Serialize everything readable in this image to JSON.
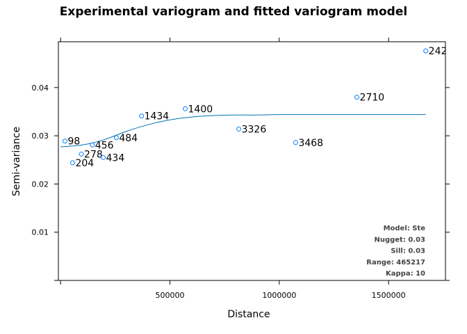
{
  "chart_data": {
    "type": "scatter",
    "title": "Experimental variogram and fitted variogram model",
    "xlabel": "Distance",
    "ylabel": "Semi-variance",
    "xlim": [
      -10000,
      1760000
    ],
    "ylim": [
      0.0,
      0.0495
    ],
    "x_ticks": [
      {
        "value": 500000,
        "label": "500000"
      },
      {
        "value": 1000000,
        "label": "1000000"
      },
      {
        "value": 1500000,
        "label": "1500000"
      }
    ],
    "y_ticks": [
      {
        "value": 0.01,
        "label": "0.01"
      },
      {
        "value": 0.02,
        "label": "0.02"
      },
      {
        "value": 0.03,
        "label": "0.03"
      },
      {
        "value": 0.04,
        "label": "0.04"
      }
    ],
    "grid": false,
    "points_color": "#0080ff",
    "line_color": "#0072b2",
    "points": [
      {
        "x": 20000,
        "y": 0.0289,
        "label": "98"
      },
      {
        "x": 55000,
        "y": 0.0244,
        "label": "204"
      },
      {
        "x": 95000,
        "y": 0.0262,
        "label": "278"
      },
      {
        "x": 145000,
        "y": 0.0281,
        "label": "456"
      },
      {
        "x": 195000,
        "y": 0.0255,
        "label": "434"
      },
      {
        "x": 255000,
        "y": 0.0296,
        "label": "484"
      },
      {
        "x": 370000,
        "y": 0.0341,
        "label": "1434"
      },
      {
        "x": 570000,
        "y": 0.0356,
        "label": "1400"
      },
      {
        "x": 815000,
        "y": 0.0314,
        "label": "3326"
      },
      {
        "x": 1075000,
        "y": 0.0286,
        "label": "3468"
      },
      {
        "x": 1355000,
        "y": 0.038,
        "label": "2710"
      },
      {
        "x": 1670000,
        "y": 0.0476,
        "label": "242"
      }
    ],
    "fitted_line": {
      "x": [
        0,
        100000,
        200000,
        300000,
        400000,
        500000,
        600000,
        700000,
        800000,
        900000,
        1000000,
        1200000,
        1400000,
        1670000
      ],
      "y": [
        0.0277,
        0.0281,
        0.0292,
        0.0309,
        0.0323,
        0.0333,
        0.0339,
        0.0342,
        0.0343,
        0.0343,
        0.0344,
        0.0344,
        0.0344,
        0.0344
      ]
    },
    "model_info": [
      "Model: Ste",
      "Nugget: 0.03",
      "Sill: 0.03",
      "Range: 465217",
      "Kappa: 10"
    ]
  }
}
